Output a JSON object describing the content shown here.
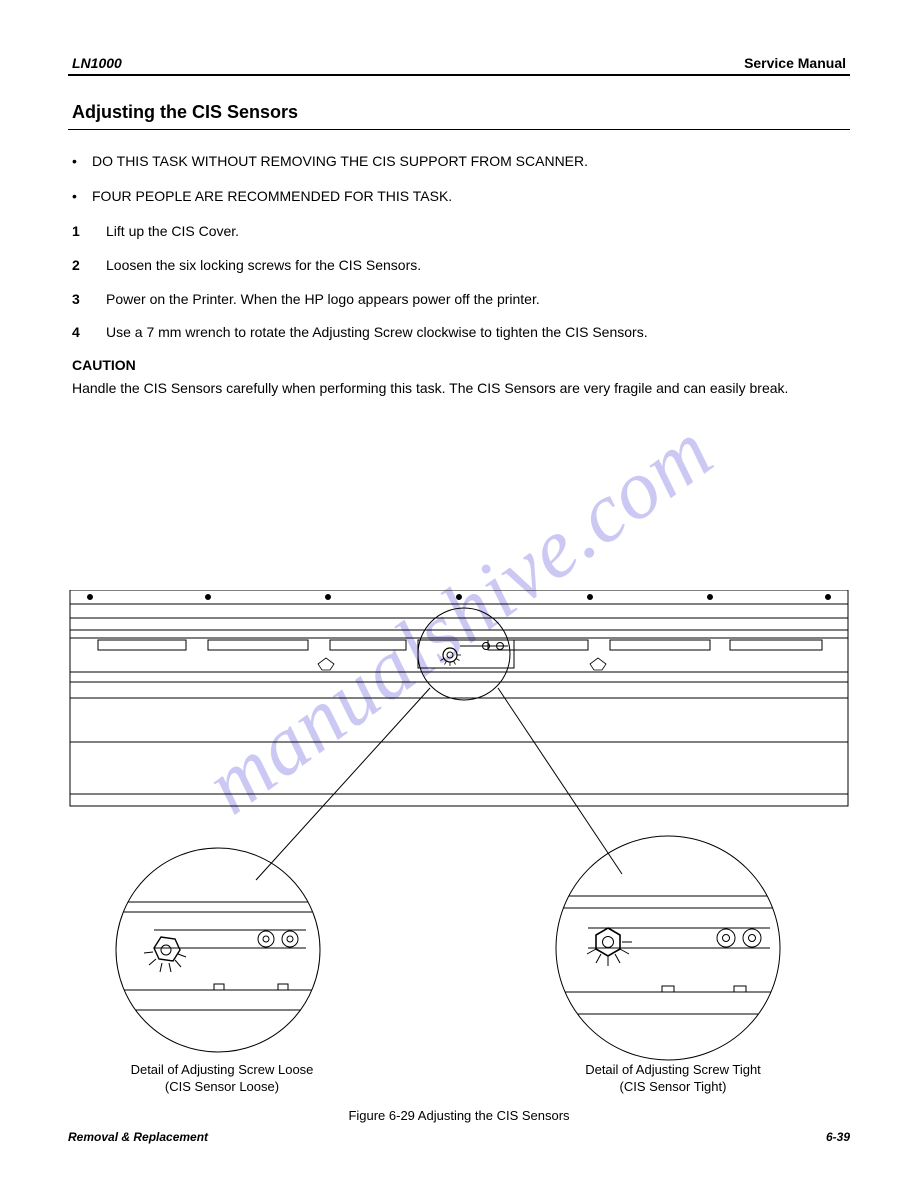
{
  "header": {
    "model": "LN1000",
    "right": "Service Manual"
  },
  "section_title": "Adjusting the CIS Sensors",
  "bullets": [
    "DO THIS TASK WITHOUT REMOVING THE CIS SUPPORT FROM SCANNER.",
    "FOUR PEOPLE ARE RECOMMENDED FOR THIS TASK."
  ],
  "steps": [
    {
      "n": "1",
      "text": "Lift up the CIS Cover."
    },
    {
      "n": "2",
      "text": "Loosen the six locking screws for the CIS Sensors."
    },
    {
      "n": "3",
      "text": "Power on the Printer.  When the HP logo appears power off the printer."
    },
    {
      "n": "4",
      "text": "Use a 7 mm wrench to rotate the Adjusting Screw clockwise to tighten the CIS Sensors."
    }
  ],
  "caution": {
    "label": "CAUTION",
    "text": "Handle the CIS Sensors carefully when performing this task.  The CIS Sensors are very fragile and can easily break."
  },
  "figure": {
    "detail_left_caption": "Detail of Adjusting Screw Loose\n(CIS Sensor Loose)",
    "detail_right_caption": "Detail of Adjusting Screw Tight\n(CIS Sensor Tight)",
    "main_caption": "Figure 6-29 Adjusting the CIS Sensors",
    "colors": {
      "stroke": "#000000",
      "fill": "#ffffff"
    }
  },
  "footer": {
    "left": "Removal & Replacement",
    "right": "6-39"
  },
  "watermark": "manualshive.com"
}
